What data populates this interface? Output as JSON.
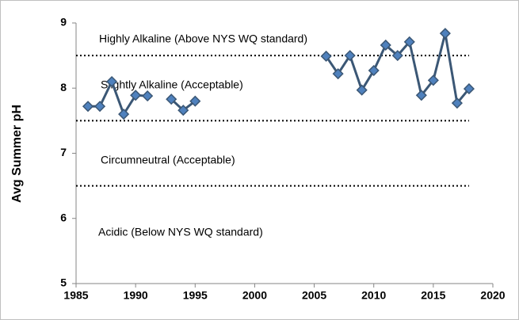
{
  "chart_data": {
    "type": "line",
    "y_label": "Avg Summer pH",
    "x": [
      1986,
      1987,
      1988,
      1989,
      1990,
      1991,
      1992,
      1993,
      1994,
      1995,
      1996,
      1997,
      1998,
      1999,
      2000,
      2001,
      2002,
      2003,
      2004,
      2005,
      2006,
      2007,
      2008,
      2009,
      2010,
      2011,
      2012,
      2013,
      2014,
      2015,
      2016,
      2017,
      2018
    ],
    "series": [
      {
        "color": "#3b5775",
        "marker_color": "#4f81bd",
        "values": [
          7.72,
          7.72,
          8.1,
          7.6,
          7.89,
          7.88,
          null,
          7.83,
          7.66,
          7.8,
          null,
          null,
          null,
          null,
          null,
          null,
          null,
          null,
          null,
          null,
          8.49,
          8.22,
          8.5,
          7.97,
          8.27,
          8.66,
          8.5,
          8.71,
          7.89,
          8.12,
          8.84,
          7.77,
          7.99
        ]
      }
    ],
    "reference_lines": [
      8.5,
      7.5,
      6.5
    ],
    "annotations": [
      "Highly Alkaline (Above NYS WQ standard)",
      "Slightly Alkaline (Acceptable)",
      "Circumneutral (Acceptable)",
      "Acidic (Below NYS WQ standard)"
    ],
    "xlim": [
      1985,
      2020
    ],
    "xticks": [
      1985,
      1990,
      1995,
      2000,
      2005,
      2010,
      2015,
      2020
    ],
    "ylim": [
      5,
      9
    ],
    "yticks": [
      5,
      6,
      7,
      8,
      9
    ]
  }
}
